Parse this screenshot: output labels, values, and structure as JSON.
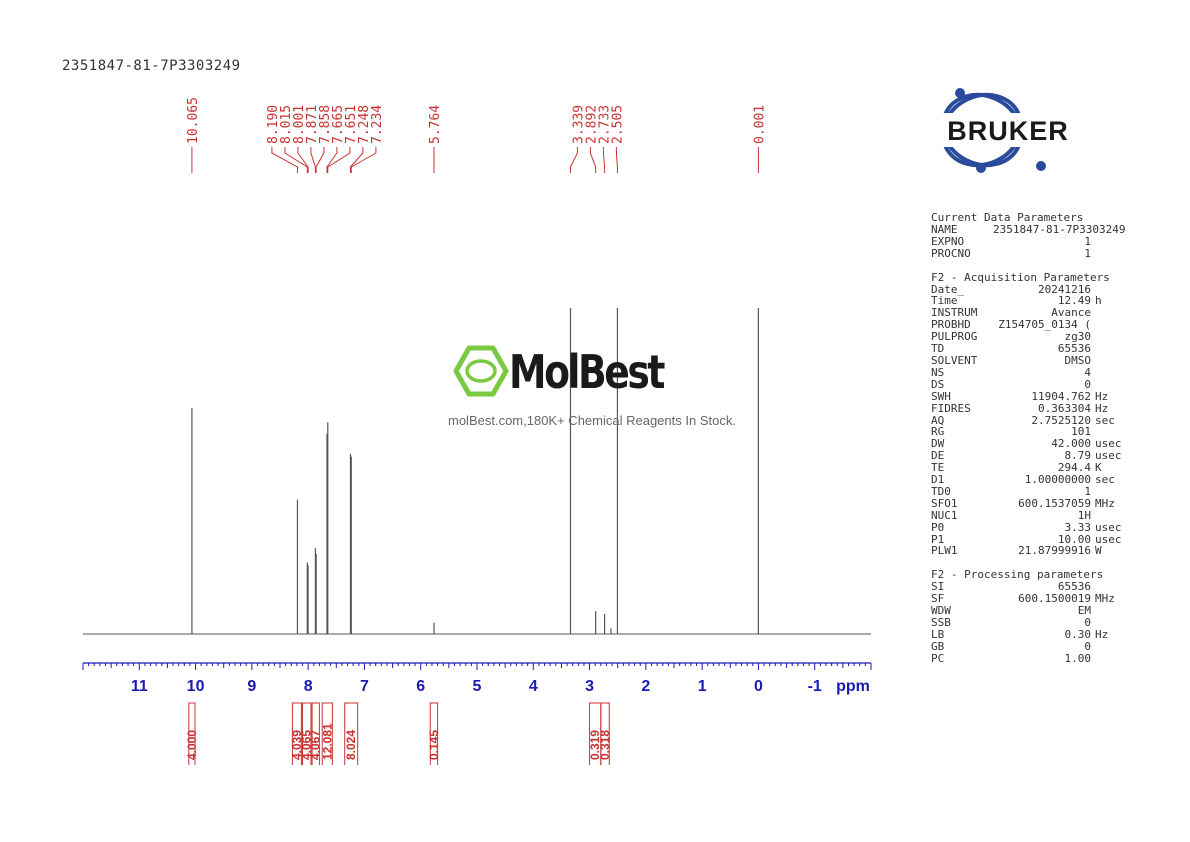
{
  "sample_id": "2351847-81-7P3303249",
  "watermark": {
    "name": "MolBest",
    "tagline": "molBest.com,180K+ Chemical Reagents In Stock.",
    "color": "#7ac943"
  },
  "brand": {
    "logo_text": "BRUKER",
    "color": "#2a4a9c"
  },
  "colors": {
    "peak_labels": "#c83232",
    "axis": "#1a1ab4",
    "trace": "#555555"
  },
  "parameters": {
    "current": {
      "title": "Current Data Parameters",
      "rows": [
        {
          "key": "NAME",
          "value": "2351847-81-7P3303249",
          "unit": ""
        },
        {
          "key": "EXPNO",
          "value": "1",
          "unit": ""
        },
        {
          "key": "PROCNO",
          "value": "1",
          "unit": ""
        }
      ]
    },
    "acquisition": {
      "title": "F2 - Acquisition Parameters",
      "rows": [
        {
          "key": "Date_",
          "value": "20241216",
          "unit": ""
        },
        {
          "key": "Time",
          "value": "12.49",
          "unit": "h"
        },
        {
          "key": "INSTRUM",
          "value": "Avance",
          "unit": ""
        },
        {
          "key": "PROBHD",
          "value": "Z154705_0134 (",
          "unit": ""
        },
        {
          "key": "PULPROG",
          "value": "zg30",
          "unit": ""
        },
        {
          "key": "TD",
          "value": "65536",
          "unit": ""
        },
        {
          "key": "SOLVENT",
          "value": "DMSO",
          "unit": ""
        },
        {
          "key": "NS",
          "value": "4",
          "unit": ""
        },
        {
          "key": "DS",
          "value": "0",
          "unit": ""
        },
        {
          "key": "SWH",
          "value": "11904.762",
          "unit": "Hz"
        },
        {
          "key": "FIDRES",
          "value": "0.363304",
          "unit": "Hz"
        },
        {
          "key": "AQ",
          "value": "2.7525120",
          "unit": "sec"
        },
        {
          "key": "RG",
          "value": "101",
          "unit": ""
        },
        {
          "key": "DW",
          "value": "42.000",
          "unit": "usec"
        },
        {
          "key": "DE",
          "value": "8.79",
          "unit": "usec"
        },
        {
          "key": "TE",
          "value": "294.4",
          "unit": "K"
        },
        {
          "key": "D1",
          "value": "1.00000000",
          "unit": "sec"
        },
        {
          "key": "TD0",
          "value": "1",
          "unit": ""
        },
        {
          "key": "SFO1",
          "value": "600.1537059",
          "unit": "MHz"
        },
        {
          "key": "NUC1",
          "value": "1H",
          "unit": ""
        },
        {
          "key": "P0",
          "value": "3.33",
          "unit": "usec"
        },
        {
          "key": "P1",
          "value": "10.00",
          "unit": "usec"
        },
        {
          "key": "PLW1",
          "value": "21.87999916",
          "unit": "W"
        }
      ]
    },
    "processing": {
      "title": "F2 - Processing parameters",
      "rows": [
        {
          "key": "SI",
          "value": "65536",
          "unit": ""
        },
        {
          "key": "SF",
          "value": "600.1500019",
          "unit": "MHz"
        },
        {
          "key": "WDW",
          "value": "EM",
          "unit": ""
        },
        {
          "key": "SSB",
          "value": "0",
          "unit": ""
        },
        {
          "key": "LB",
          "value": "0.30",
          "unit": "Hz"
        },
        {
          "key": "GB",
          "value": "0",
          "unit": ""
        },
        {
          "key": "PC",
          "value": "1.00",
          "unit": ""
        }
      ]
    }
  },
  "chart_data": {
    "type": "line",
    "xlabel": "ppm",
    "xlim": [
      12.0,
      -2.0
    ],
    "x_reversed": true,
    "x_ticks": [
      "11",
      "10",
      "9",
      "8",
      "7",
      "6",
      "5",
      "4",
      "3",
      "2",
      "1",
      "0",
      "-1"
    ],
    "grid": false,
    "peak_groups": [
      {
        "labels": [
          "10.065"
        ],
        "anchor": 10.065
      },
      {
        "labels": [
          "8.190",
          "8.015",
          "8.001",
          "7.871",
          "7.858",
          "7.665",
          "7.651",
          "7.248",
          "7.234"
        ],
        "anchor": 7.72
      },
      {
        "labels": [
          "5.764"
        ],
        "anchor": 5.764
      },
      {
        "labels": [
          "3.339",
          "2.892",
          "2.733",
          "2.505"
        ],
        "anchor": 2.87
      },
      {
        "labels": [
          "0.001"
        ],
        "anchor": 0.001
      }
    ],
    "peaks": [
      {
        "ppm": 10.065,
        "height": 0.79
      },
      {
        "ppm": 8.19,
        "height": 0.47
      },
      {
        "ppm": 8.015,
        "height": 0.25
      },
      {
        "ppm": 8.001,
        "height": 0.24
      },
      {
        "ppm": 7.871,
        "height": 0.3
      },
      {
        "ppm": 7.858,
        "height": 0.28
      },
      {
        "ppm": 7.665,
        "height": 0.7
      },
      {
        "ppm": 7.651,
        "height": 0.74
      },
      {
        "ppm": 7.248,
        "height": 0.63
      },
      {
        "ppm": 7.234,
        "height": 0.62
      },
      {
        "ppm": 5.764,
        "height": 0.04
      },
      {
        "ppm": 3.339,
        "height": 1.14
      },
      {
        "ppm": 2.892,
        "height": 0.08
      },
      {
        "ppm": 2.733,
        "height": 0.07
      },
      {
        "ppm": 2.62,
        "height": 0.02
      },
      {
        "ppm": 2.505,
        "height": 1.14
      },
      {
        "ppm": 0.001,
        "height": 1.14
      }
    ],
    "integrals": [
      {
        "from": 10.12,
        "to": 10.01,
        "value": "4.000"
      },
      {
        "from": 8.28,
        "to": 8.12,
        "value": "4.039"
      },
      {
        "from": 8.1,
        "to": 7.95,
        "value": "4.065"
      },
      {
        "from": 7.93,
        "to": 7.8,
        "value": "4.067"
      },
      {
        "from": 7.75,
        "to": 7.57,
        "value": "12.081"
      },
      {
        "from": 7.35,
        "to": 7.12,
        "value": "8.024"
      },
      {
        "from": 5.83,
        "to": 5.7,
        "value": "0.145"
      },
      {
        "from": 3.0,
        "to": 2.8,
        "value": "0.319"
      },
      {
        "from": 2.8,
        "to": 2.65,
        "value": "0.318"
      }
    ]
  }
}
